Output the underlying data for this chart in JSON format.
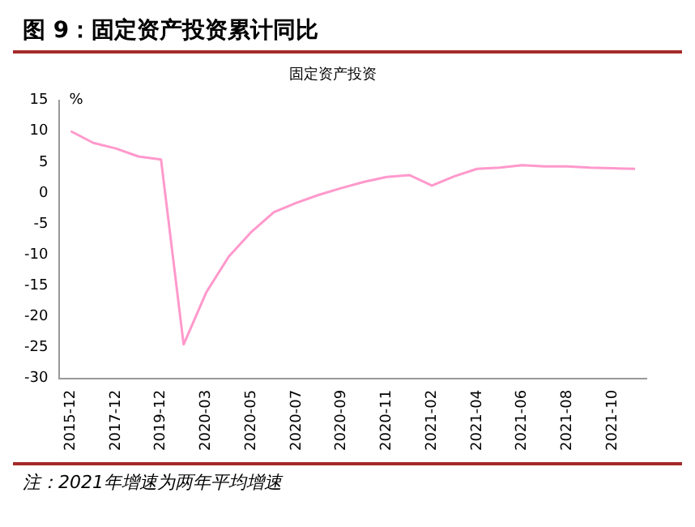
{
  "chart_data": {
    "type": "line",
    "title": "图 9：固定资产投资累计同比",
    "subtitle": "固定资产投资",
    "ylabel": "%",
    "categories": [
      "2015-12",
      null,
      "2017-12",
      null,
      "2019-12",
      null,
      "2020-03",
      null,
      "2020-05",
      null,
      "2020-07",
      null,
      "2020-09",
      null,
      "2020-11",
      null,
      "2021-02",
      null,
      "2021-04",
      null,
      "2021-06",
      null,
      "2021-08",
      null,
      "2021-10",
      null
    ],
    "series": [
      {
        "color": "#ff99cc",
        "values": [
          10.0,
          8.1,
          7.2,
          5.9,
          5.4,
          -24.5,
          -16.1,
          -10.3,
          -6.3,
          -3.1,
          -1.6,
          -0.3,
          0.8,
          1.8,
          2.6,
          2.9,
          1.2,
          2.7,
          3.9,
          4.1,
          4.5,
          4.3,
          4.3,
          4.1,
          4.0,
          3.9
        ]
      }
    ],
    "ylim": [
      -30,
      15
    ],
    "yticks": [
      -30,
      -25,
      -20,
      -15,
      -10,
      -5,
      0,
      5,
      10,
      15
    ],
    "grid": false,
    "legend": false,
    "marker": "none",
    "annotations": [
      "注：2021年增速为两年平均增速"
    ]
  }
}
